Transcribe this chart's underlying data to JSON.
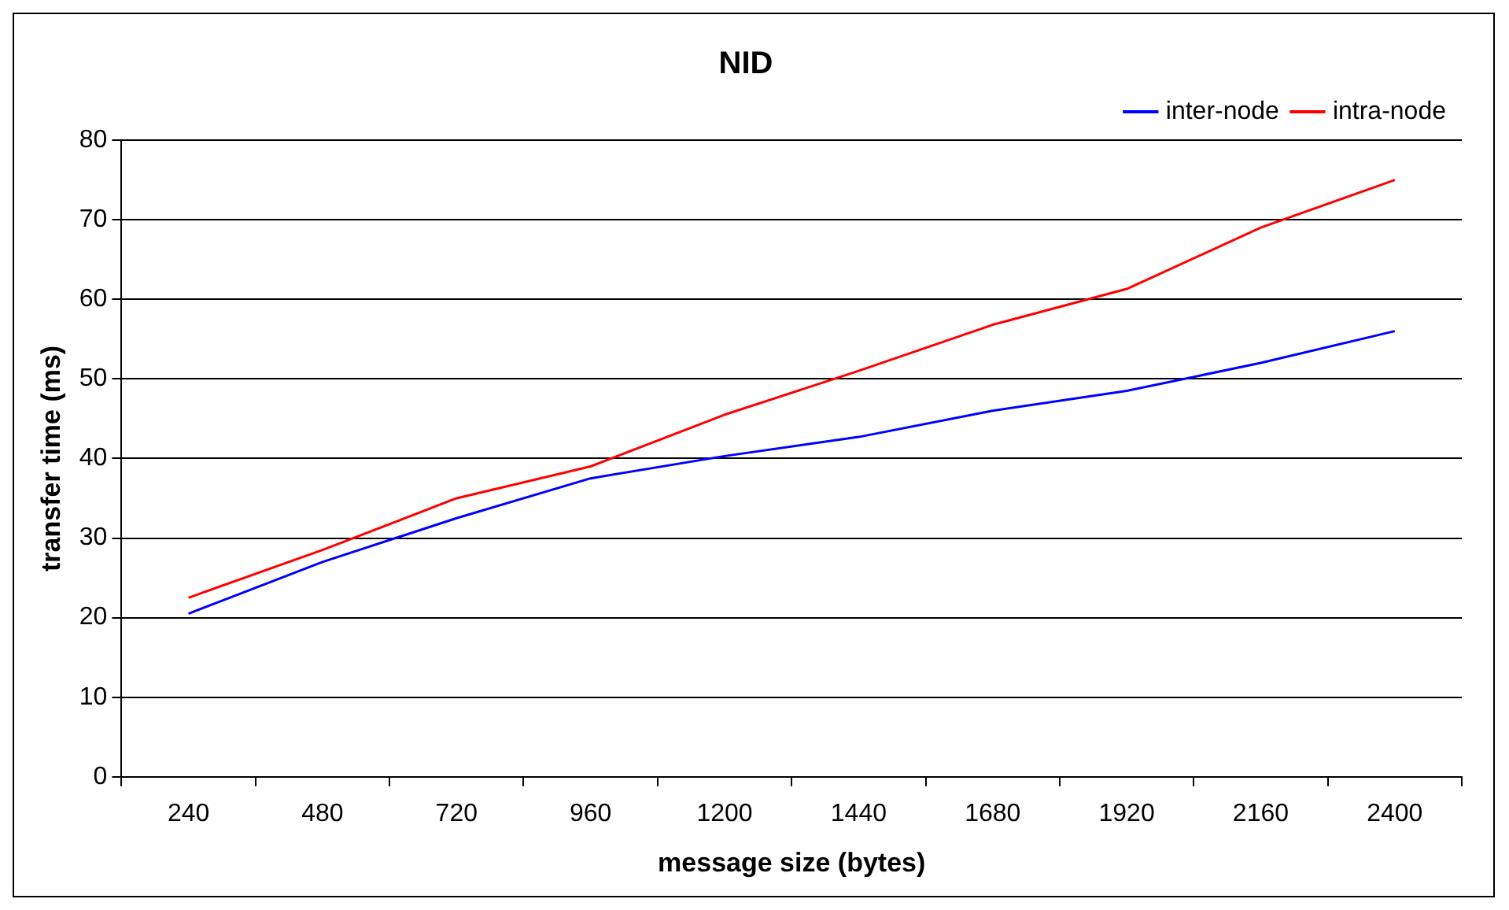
{
  "chart_data": {
    "type": "line",
    "title": "NID",
    "xlabel": "message size (bytes)",
    "ylabel": "transfer time (ms)",
    "categories": [
      "240",
      "480",
      "720",
      "960",
      "1200",
      "1440",
      "1680",
      "1920",
      "2160",
      "2400"
    ],
    "series": [
      {
        "name": "inter-node",
        "color": "#0000ff",
        "values": [
          20.5,
          27,
          32.5,
          37.5,
          40.3,
          42.7,
          46,
          48.5,
          52,
          56
        ]
      },
      {
        "name": "intra-node",
        "color": "#ff0000",
        "values": [
          22.5,
          28.5,
          35,
          39,
          45.5,
          51,
          56.8,
          61.3,
          69,
          75
        ]
      }
    ],
    "ylim": [
      0,
      80
    ],
    "yticks": [
      0,
      10,
      20,
      30,
      40,
      50,
      60,
      70,
      80
    ],
    "grid": "y",
    "legend": "top right",
    "marker": "none",
    "line_style": "solid"
  }
}
